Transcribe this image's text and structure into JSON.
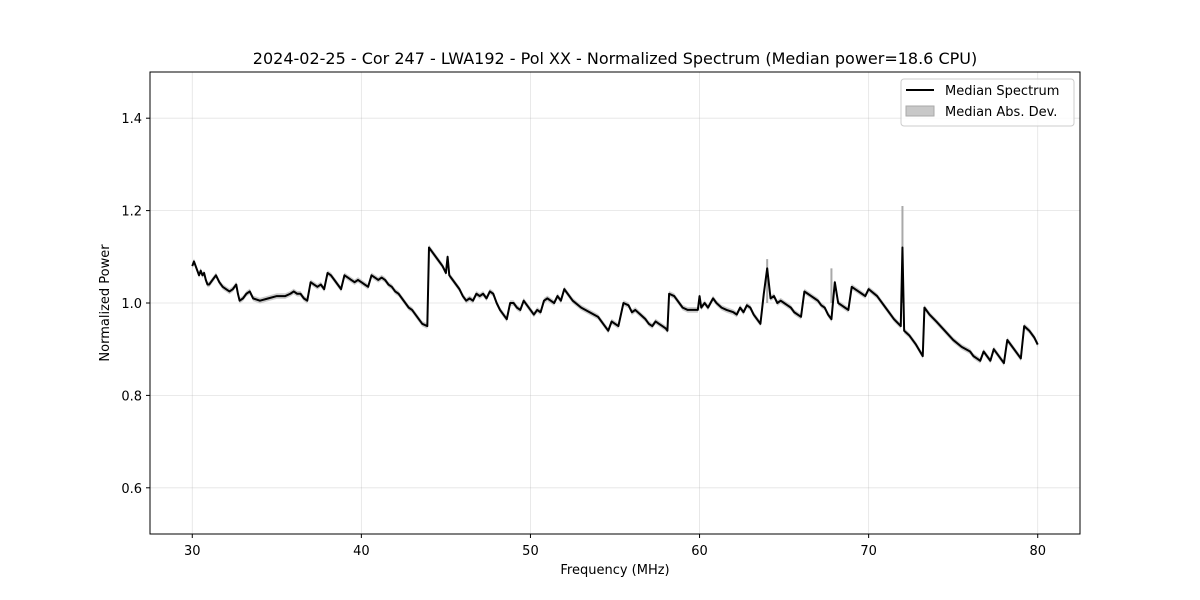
{
  "chart_data": {
    "type": "line",
    "title": "2024-02-25 - Cor 247 - LWA192 - Pol XX - Normalized Spectrum (Median power=18.6 CPU)",
    "xlabel": "Frequency (MHz)",
    "ylabel": "Normalized Power",
    "xlim": [
      27.5,
      82.5
    ],
    "ylim": [
      0.5,
      1.5
    ],
    "xticks": [
      30,
      40,
      50,
      60,
      70,
      80
    ],
    "yticks": [
      0.6,
      0.8,
      1.0,
      1.2,
      1.4
    ],
    "xtick_labels": [
      "30",
      "40",
      "50",
      "60",
      "70",
      "80"
    ],
    "ytick_labels": [
      "0.6",
      "0.8",
      "1.0",
      "1.2",
      "1.4"
    ],
    "grid": true,
    "legend_position": "top-right",
    "legend": [
      "Median Spectrum",
      "Median Abs. Dev."
    ],
    "colors": {
      "line": "#000000",
      "band": "#a9a9a9"
    },
    "series": [
      {
        "name": "Median Spectrum",
        "x": [
          30.0,
          30.1,
          30.2,
          30.3,
          30.4,
          30.5,
          30.6,
          30.7,
          30.8,
          30.9,
          31.0,
          31.2,
          31.4,
          31.6,
          31.8,
          32.0,
          32.2,
          32.4,
          32.6,
          32.7,
          32.8,
          33.0,
          33.2,
          33.4,
          33.6,
          34.0,
          34.5,
          35.0,
          35.5,
          35.8,
          36.0,
          36.2,
          36.4,
          36.6,
          36.8,
          37.0,
          37.2,
          37.4,
          37.6,
          37.8,
          38.0,
          38.2,
          38.4,
          38.6,
          38.8,
          39.0,
          39.2,
          39.4,
          39.6,
          39.8,
          40.0,
          40.2,
          40.4,
          40.6,
          40.8,
          41.0,
          41.2,
          41.4,
          41.6,
          41.8,
          42.0,
          42.2,
          42.4,
          42.6,
          42.8,
          43.0,
          43.2,
          43.4,
          43.6,
          43.9,
          44.0,
          44.2,
          44.5,
          44.8,
          45.0,
          45.1,
          45.2,
          45.4,
          45.6,
          45.8,
          46.0,
          46.2,
          46.4,
          46.6,
          46.8,
          47.0,
          47.2,
          47.4,
          47.6,
          47.8,
          48.0,
          48.2,
          48.4,
          48.6,
          48.8,
          49.0,
          49.2,
          49.4,
          49.6,
          49.8,
          50.0,
          50.2,
          50.4,
          50.6,
          50.8,
          51.0,
          51.2,
          51.4,
          51.6,
          51.8,
          52.0,
          52.2,
          52.5,
          53.0,
          53.5,
          54.0,
          54.3,
          54.6,
          54.8,
          55.0,
          55.2,
          55.5,
          55.8,
          56.0,
          56.2,
          56.5,
          56.8,
          57.0,
          57.2,
          57.4,
          57.6,
          57.8,
          58.0,
          58.1,
          58.2,
          58.5,
          58.8,
          59.0,
          59.3,
          59.6,
          59.9,
          60.0,
          60.1,
          60.3,
          60.5,
          60.8,
          61.0,
          61.3,
          61.6,
          62.0,
          62.2,
          62.4,
          62.6,
          62.8,
          63.0,
          63.2,
          63.4,
          63.6,
          63.8,
          64.0,
          64.2,
          64.4,
          64.6,
          64.8,
          65.0,
          65.2,
          65.4,
          65.6,
          65.8,
          66.0,
          66.2,
          66.4,
          66.6,
          66.8,
          67.0,
          67.2,
          67.4,
          67.6,
          67.8,
          68.0,
          68.2,
          68.4,
          68.6,
          68.8,
          69.0,
          69.2,
          69.4,
          69.6,
          69.8,
          70.0,
          70.5,
          71.0,
          71.5,
          71.9,
          72.0,
          72.1,
          72.4,
          72.8,
          73.2,
          73.3,
          73.6,
          74.0,
          74.5,
          75.0,
          75.5,
          76.0,
          76.2,
          76.4,
          76.6,
          76.8,
          77.0,
          77.2,
          77.4,
          77.6,
          77.8,
          78.0,
          78.2,
          78.5,
          78.8,
          79.0,
          79.2,
          79.5,
          79.8,
          80.0
        ],
        "values": [
          1.08,
          1.09,
          1.08,
          1.07,
          1.06,
          1.07,
          1.06,
          1.065,
          1.05,
          1.04,
          1.04,
          1.05,
          1.06,
          1.045,
          1.035,
          1.03,
          1.025,
          1.03,
          1.04,
          1.02,
          1.005,
          1.01,
          1.02,
          1.025,
          1.01,
          1.005,
          1.01,
          1.015,
          1.015,
          1.02,
          1.025,
          1.02,
          1.02,
          1.01,
          1.005,
          1.045,
          1.04,
          1.035,
          1.04,
          1.03,
          1.065,
          1.06,
          1.05,
          1.04,
          1.03,
          1.06,
          1.055,
          1.05,
          1.045,
          1.05,
          1.045,
          1.04,
          1.035,
          1.06,
          1.055,
          1.05,
          1.055,
          1.05,
          1.04,
          1.035,
          1.025,
          1.02,
          1.01,
          1.0,
          0.99,
          0.985,
          0.975,
          0.965,
          0.955,
          0.95,
          1.12,
          1.11,
          1.095,
          1.08,
          1.065,
          1.1,
          1.06,
          1.05,
          1.04,
          1.03,
          1.015,
          1.005,
          1.01,
          1.005,
          1.02,
          1.015,
          1.02,
          1.01,
          1.025,
          1.02,
          1.0,
          0.985,
          0.975,
          0.965,
          1.0,
          1.0,
          0.99,
          0.985,
          1.005,
          0.995,
          0.985,
          0.975,
          0.985,
          0.98,
          1.005,
          1.01,
          1.005,
          1.0,
          1.015,
          1.005,
          1.03,
          1.02,
          1.005,
          0.99,
          0.98,
          0.97,
          0.955,
          0.94,
          0.96,
          0.955,
          0.95,
          1.0,
          0.995,
          0.98,
          0.985,
          0.975,
          0.965,
          0.955,
          0.95,
          0.96,
          0.955,
          0.95,
          0.945,
          0.94,
          1.02,
          1.015,
          1.0,
          0.99,
          0.985,
          0.985,
          0.985,
          1.015,
          0.99,
          1.0,
          0.99,
          1.01,
          1.0,
          0.99,
          0.985,
          0.98,
          0.975,
          0.99,
          0.98,
          0.995,
          0.99,
          0.975,
          0.965,
          0.955,
          1.02,
          1.075,
          1.01,
          1.015,
          1.0,
          1.005,
          1.0,
          0.995,
          0.99,
          0.98,
          0.975,
          0.97,
          1.025,
          1.02,
          1.015,
          1.01,
          1.005,
          0.995,
          0.99,
          0.975,
          0.965,
          1.045,
          1.0,
          0.995,
          0.99,
          0.985,
          1.035,
          1.03,
          1.025,
          1.02,
          1.015,
          1.03,
          1.015,
          0.99,
          0.965,
          0.95,
          1.12,
          0.94,
          0.93,
          0.91,
          0.885,
          0.99,
          0.975,
          0.96,
          0.94,
          0.92,
          0.905,
          0.895,
          0.885,
          0.88,
          0.875,
          0.895,
          0.885,
          0.875,
          0.9,
          0.89,
          0.88,
          0.87,
          0.92,
          0.905,
          0.89,
          0.88,
          0.95,
          0.94,
          0.925,
          0.91
        ]
      },
      {
        "name": "Median Abs. Dev.",
        "kind": "band",
        "half_width": 0.006
      }
    ]
  }
}
